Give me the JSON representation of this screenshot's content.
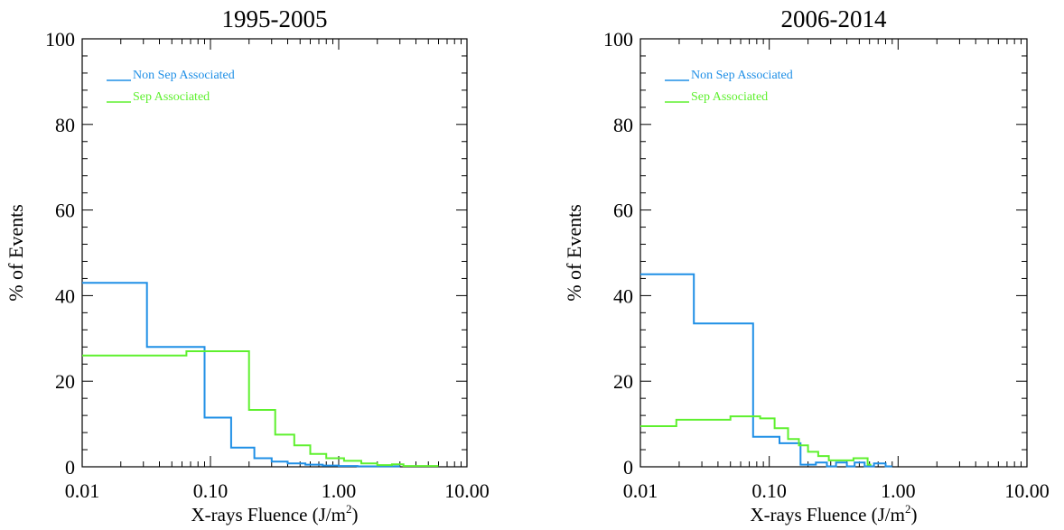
{
  "chart_data": [
    {
      "type": "line",
      "step": "histogram",
      "title": "1995-2005",
      "xlabel": "X-rays Fluence (J/m",
      "xlabel_sup": "2",
      "xlabel_close": ")",
      "ylabel": "% of Events",
      "x_scale": "log",
      "xlim": [
        0.01,
        10.0
      ],
      "ylim": [
        0,
        100
      ],
      "x_ticks": [
        0.01,
        0.1,
        1.0,
        10.0
      ],
      "x_tick_labels": [
        "0.01",
        "0.10",
        "1.00",
        "10.00"
      ],
      "y_ticks": [
        0,
        20,
        40,
        60,
        80,
        100
      ],
      "y_tick_labels": [
        "0",
        "20",
        "40",
        "60",
        "80",
        "100"
      ],
      "legend_position": "top-left",
      "series": [
        {
          "name": "Non Sep Associated",
          "color": "#1f8fe6",
          "edges": [
            0.01,
            0.032,
            0.09,
            0.145,
            0.22,
            0.3,
            0.4,
            0.55,
            0.75,
            1.0,
            1.4,
            2.0,
            3.0
          ],
          "values": [
            43.0,
            28.0,
            11.5,
            4.5,
            2.0,
            1.2,
            0.8,
            0.5,
            0.3,
            0.2,
            0.1,
            0.1
          ]
        },
        {
          "name": "Sep Associated",
          "color": "#5ef02e",
          "edges": [
            0.01,
            0.065,
            0.2,
            0.32,
            0.45,
            0.6,
            0.8,
            1.1,
            1.5,
            2.0,
            2.6,
            3.2,
            6.0
          ],
          "values": [
            26.0,
            27.0,
            13.3,
            7.5,
            5.0,
            3.0,
            2.0,
            1.4,
            0.8,
            0.4,
            0.6,
            0.2
          ]
        }
      ]
    },
    {
      "type": "line",
      "step": "histogram",
      "title": "2006-2014",
      "xlabel": "X-rays Fluence (J/m",
      "xlabel_sup": "2",
      "xlabel_close": ")",
      "ylabel": "% of Events",
      "x_scale": "log",
      "xlim": [
        0.01,
        10.0
      ],
      "ylim": [
        0,
        100
      ],
      "x_ticks": [
        0.01,
        0.1,
        1.0,
        10.0
      ],
      "x_tick_labels": [
        "0.01",
        "0.10",
        "1.00",
        "10.00"
      ],
      "y_ticks": [
        0,
        20,
        40,
        60,
        80,
        100
      ],
      "y_tick_labels": [
        "0",
        "20",
        "40",
        "60",
        "80",
        "100"
      ],
      "legend_position": "top-left",
      "series": [
        {
          "name": "Non Sep Associated",
          "color": "#1f8fe6",
          "edges": [
            0.01,
            0.026,
            0.075,
            0.12,
            0.175,
            0.23,
            0.28,
            0.33,
            0.4,
            0.46,
            0.55,
            0.65,
            0.8,
            0.9
          ],
          "values": [
            45.0,
            33.5,
            7.0,
            5.5,
            0.5,
            1.0,
            0.1,
            1.0,
            0.1,
            1.0,
            0.1,
            0.8,
            0.1
          ]
        },
        {
          "name": "Sep Associated",
          "color": "#5ef02e",
          "edges": [
            0.01,
            0.019,
            0.05,
            0.085,
            0.11,
            0.14,
            0.17,
            0.2,
            0.24,
            0.29,
            0.35,
            0.45,
            0.58,
            0.62
          ],
          "values": [
            9.5,
            11.0,
            11.8,
            11.3,
            9.0,
            6.5,
            5.0,
            3.5,
            2.5,
            1.5,
            1.5,
            2.0,
            0.5
          ]
        }
      ]
    }
  ]
}
